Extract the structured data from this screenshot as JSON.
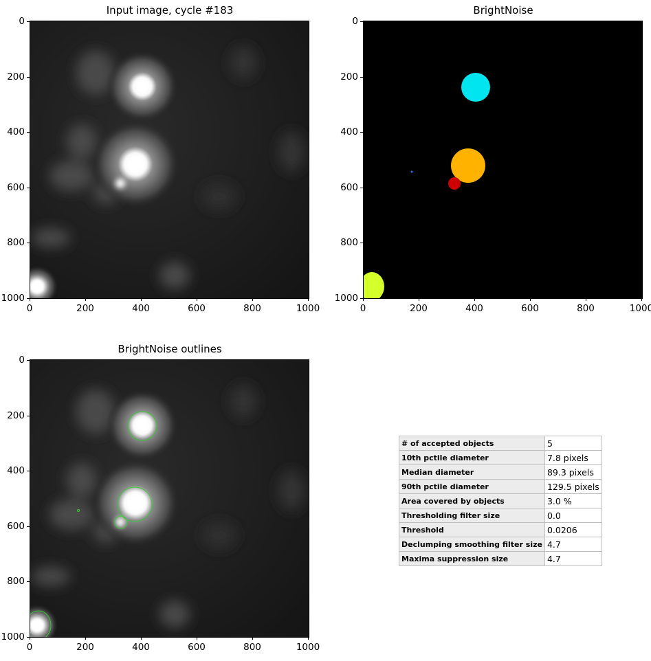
{
  "panels": {
    "input": {
      "title": "Input image, cycle #183"
    },
    "objects": {
      "title": "BrightNoise"
    },
    "outlines": {
      "title": "BrightNoise outlines"
    }
  },
  "axes": {
    "x_ticks": [
      "0",
      "200",
      "400",
      "600",
      "800",
      "1000"
    ],
    "y_ticks": [
      "0",
      "200",
      "400",
      "600",
      "800",
      "1000"
    ]
  },
  "object_colors": [
    "#00e5f0",
    "#ffb300",
    "#cc0000",
    "#d4ff2a",
    "#1f77ff"
  ],
  "outline_color": "#33cc33",
  "stats": [
    {
      "label": "# of accepted objects",
      "value": "5"
    },
    {
      "label": "10th pctile diameter",
      "value": "7.8 pixels"
    },
    {
      "label": "Median diameter",
      "value": "89.3 pixels"
    },
    {
      "label": "90th pctile diameter",
      "value": "129.5 pixels"
    },
    {
      "label": "Area covered by objects",
      "value": "3.0 %"
    },
    {
      "label": "Thresholding filter size",
      "value": "0.0"
    },
    {
      "label": "Threshold",
      "value": "0.0206"
    },
    {
      "label": "Declumping smoothing filter size",
      "value": "4.7"
    },
    {
      "label": "Maxima suppression size",
      "value": "4.7"
    }
  ]
}
